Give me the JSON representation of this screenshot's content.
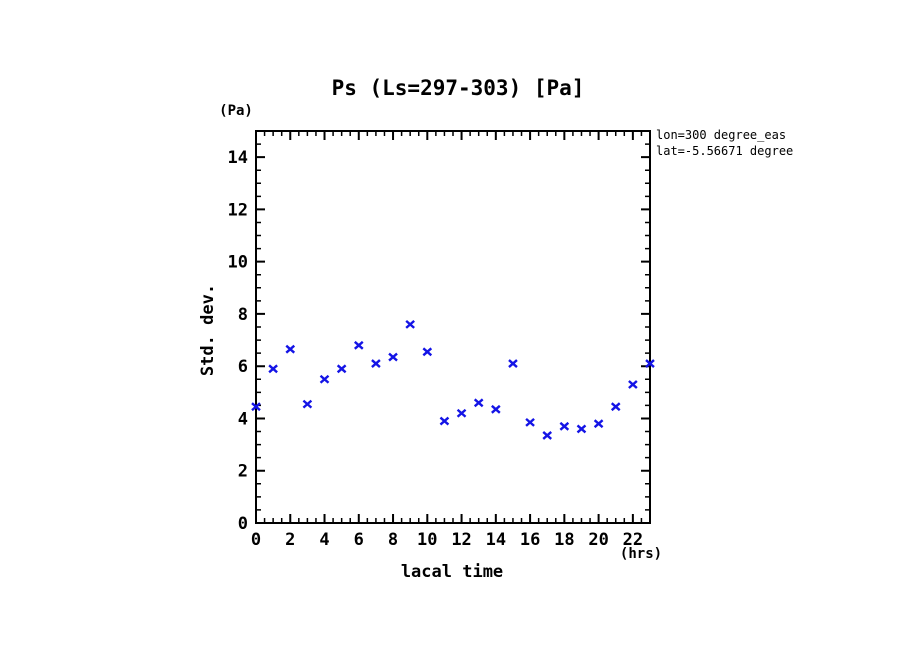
{
  "window": {
    "background": "#ffffff"
  },
  "title": "Ps (Ls=297-303) [Pa]",
  "y_unit_label": "(Pa)",
  "x_unit_label": "(hrs)",
  "xlabel": "lacal time",
  "ylabel": "Std. dev.",
  "annotation": {
    "line1": "lon=300 degree_eas",
    "line2": "lat=-5.56671 degree"
  },
  "colors": {
    "marker": "#1414e6",
    "axis": "#000000",
    "text": "#000000"
  },
  "chart_data": {
    "type": "scatter",
    "marker": "x",
    "title": "Ps (Ls=297-303) [Pa]",
    "xlabel": "lacal time",
    "ylabel": "Std. dev.",
    "x_unit": "(hrs)",
    "y_unit": "(Pa)",
    "xlim": [
      0,
      23
    ],
    "ylim": [
      0,
      15
    ],
    "xticks_major": [
      0,
      2,
      4,
      6,
      8,
      10,
      12,
      14,
      16,
      18,
      20,
      22
    ],
    "yticks_major": [
      0,
      2,
      4,
      6,
      8,
      10,
      12,
      14
    ],
    "minor_tick_step": 0.5,
    "grid": false,
    "legend": null,
    "annotations": [
      "lon=300 degree_eas",
      "lat=-5.56671 degree"
    ],
    "x": [
      0,
      1,
      2,
      3,
      4,
      5,
      6,
      7,
      8,
      9,
      10,
      11,
      12,
      13,
      14,
      15,
      16,
      17,
      18,
      19,
      20,
      21,
      22,
      23
    ],
    "y": [
      4.45,
      5.9,
      6.65,
      4.55,
      5.5,
      5.9,
      6.8,
      6.1,
      6.35,
      7.6,
      6.55,
      3.9,
      4.2,
      4.6,
      4.35,
      6.1,
      3.85,
      3.35,
      3.7,
      3.6,
      3.8,
      4.45,
      5.3,
      6.1
    ]
  }
}
